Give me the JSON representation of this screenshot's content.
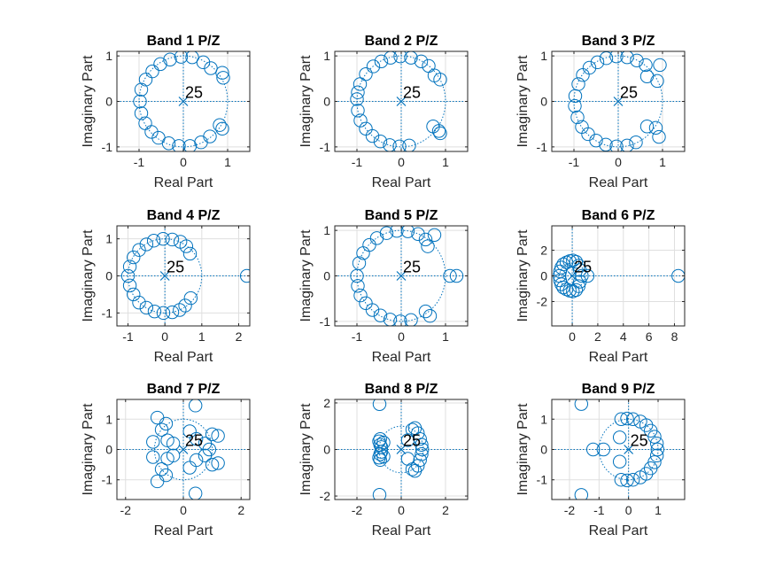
{
  "chart_data": [
    {
      "type": "scatter",
      "title": "Band 1 P/Z",
      "xlabel": "Real Part",
      "ylabel": "Imaginary Part",
      "xlim": [
        -1.5,
        1.5
      ],
      "ylim": [
        -1.1,
        1.1
      ],
      "xticks": [
        -1,
        0,
        1
      ],
      "yticks": [
        -1,
        0,
        1
      ],
      "pole_marker": [
        0,
        0
      ],
      "pole_count_label": "25",
      "grid": true,
      "zeros": [
        [
          -0.95,
          0.26
        ],
        [
          -0.98,
          0.0
        ],
        [
          -0.95,
          -0.26
        ],
        [
          -0.86,
          -0.48
        ],
        [
          -0.72,
          -0.67
        ],
        [
          -0.56,
          -0.8
        ],
        [
          -0.33,
          -0.92
        ],
        [
          -0.1,
          -0.98
        ],
        [
          0.15,
          -0.98
        ],
        [
          0.4,
          -0.9
        ],
        [
          0.6,
          -0.77
        ],
        [
          0.82,
          -0.52
        ],
        [
          0.88,
          -0.6
        ],
        [
          0.9,
          0.52
        ],
        [
          0.88,
          0.63
        ],
        [
          0.62,
          0.73
        ],
        [
          0.45,
          0.86
        ],
        [
          0.2,
          0.97
        ],
        [
          -0.05,
          0.98
        ],
        [
          -0.3,
          0.92
        ],
        [
          -0.52,
          0.82
        ],
        [
          -0.7,
          0.66
        ],
        [
          -0.85,
          0.48
        ]
      ]
    },
    {
      "type": "scatter",
      "title": "Band 2 P/Z",
      "xlabel": "Real Part",
      "ylabel": "Imaginary Part",
      "xlim": [
        -1.5,
        1.5
      ],
      "ylim": [
        -1.1,
        1.1
      ],
      "xticks": [
        -1,
        0,
        1
      ],
      "yticks": [
        -1,
        0,
        1
      ],
      "pole_marker": [
        0,
        0
      ],
      "pole_count_label": "25",
      "grid": true,
      "zeros": [
        [
          -1.0,
          0.05
        ],
        [
          -0.98,
          -0.2
        ],
        [
          -0.92,
          -0.42
        ],
        [
          -0.8,
          -0.6
        ],
        [
          -0.65,
          -0.76
        ],
        [
          -0.47,
          -0.88
        ],
        [
          -0.26,
          -0.96
        ],
        [
          -0.04,
          -0.99
        ],
        [
          0.18,
          -0.97
        ],
        [
          0.72,
          -0.55
        ],
        [
          0.85,
          -0.65
        ],
        [
          0.88,
          -0.7
        ],
        [
          0.75,
          0.57
        ],
        [
          0.88,
          0.48
        ],
        [
          0.62,
          0.78
        ],
        [
          0.45,
          0.88
        ],
        [
          0.22,
          0.96
        ],
        [
          -0.02,
          0.99
        ],
        [
          -0.24,
          0.96
        ],
        [
          -0.45,
          0.88
        ],
        [
          -0.63,
          0.77
        ],
        [
          -0.8,
          0.6
        ],
        [
          -0.93,
          0.38
        ],
        [
          -0.98,
          0.2
        ]
      ]
    },
    {
      "type": "scatter",
      "title": "Band 3 P/Z",
      "xlabel": "Real Part",
      "ylabel": "Imaginary Part",
      "xlim": [
        -1.5,
        1.5
      ],
      "ylim": [
        -1.1,
        1.1
      ],
      "xticks": [
        -1,
        0,
        1
      ],
      "yticks": [
        -1,
        0,
        1
      ],
      "pole_marker": [
        0,
        0
      ],
      "pole_count_label": "25",
      "grid": true,
      "zeros": [
        [
          -0.97,
          0.12
        ],
        [
          -0.98,
          -0.1
        ],
        [
          -0.92,
          -0.35
        ],
        [
          -0.82,
          -0.56
        ],
        [
          -0.68,
          -0.72
        ],
        [
          -0.5,
          -0.86
        ],
        [
          -0.28,
          -0.95
        ],
        [
          -0.04,
          -0.99
        ],
        [
          0.2,
          -0.97
        ],
        [
          0.4,
          -0.9
        ],
        [
          0.65,
          -0.55
        ],
        [
          0.85,
          -0.58
        ],
        [
          0.92,
          -0.78
        ],
        [
          0.65,
          0.55
        ],
        [
          0.88,
          0.45
        ],
        [
          0.94,
          0.8
        ],
        [
          0.62,
          0.8
        ],
        [
          0.42,
          0.9
        ],
        [
          0.2,
          0.97
        ],
        [
          -0.04,
          0.99
        ],
        [
          -0.27,
          0.95
        ],
        [
          -0.47,
          0.86
        ],
        [
          -0.65,
          0.74
        ],
        [
          -0.8,
          0.58
        ],
        [
          -0.9,
          0.38
        ]
      ]
    },
    {
      "type": "scatter",
      "title": "Band 4 P/Z",
      "xlabel": "Real Part",
      "ylabel": "Imaginary Part",
      "xlim": [
        -1.3,
        2.3
      ],
      "ylim": [
        -1.35,
        1.35
      ],
      "xticks": [
        -1,
        0,
        1,
        2
      ],
      "yticks": [
        -1,
        0,
        1
      ],
      "pole_marker": [
        0,
        0
      ],
      "pole_count_label": "25",
      "grid": true,
      "zeros": [
        [
          2.22,
          0.0
        ],
        [
          -0.95,
          0.25
        ],
        [
          -1.0,
          0.0
        ],
        [
          -0.95,
          -0.26
        ],
        [
          -0.85,
          -0.5
        ],
        [
          -0.7,
          -0.72
        ],
        [
          -0.5,
          -0.86
        ],
        [
          -0.28,
          -0.96
        ],
        [
          -0.04,
          -1.0
        ],
        [
          0.2,
          -0.98
        ],
        [
          0.4,
          -0.92
        ],
        [
          0.55,
          -0.8
        ],
        [
          0.7,
          -0.6
        ],
        [
          0.68,
          0.6
        ],
        [
          0.58,
          0.8
        ],
        [
          0.42,
          0.92
        ],
        [
          0.2,
          0.98
        ],
        [
          -0.05,
          1.0
        ],
        [
          -0.3,
          0.95
        ],
        [
          -0.5,
          0.85
        ],
        [
          -0.7,
          0.7
        ],
        [
          -0.85,
          0.5
        ]
      ]
    },
    {
      "type": "scatter",
      "title": "Band 5 P/Z",
      "xlabel": "Real Part",
      "ylabel": "Imaginary Part",
      "xlim": [
        -1.5,
        1.5
      ],
      "ylim": [
        -1.1,
        1.1
      ],
      "xticks": [
        -1,
        0,
        1
      ],
      "yticks": [
        -1,
        0,
        1
      ],
      "pole_marker": [
        0,
        0
      ],
      "pole_count_label": "25",
      "grid": true,
      "zeros": [
        [
          1.1,
          0.0
        ],
        [
          1.25,
          0.0
        ],
        [
          -1.0,
          0.0
        ],
        [
          -0.98,
          -0.22
        ],
        [
          -0.92,
          -0.43
        ],
        [
          -0.8,
          -0.6
        ],
        [
          -0.65,
          -0.75
        ],
        [
          -0.47,
          -0.87
        ],
        [
          -0.25,
          -0.96
        ],
        [
          -0.02,
          -1.0
        ],
        [
          0.22,
          -0.97
        ],
        [
          0.55,
          -0.78
        ],
        [
          0.65,
          -0.88
        ],
        [
          0.75,
          0.9
        ],
        [
          0.55,
          0.8
        ],
        [
          0.6,
          0.65
        ],
        [
          0.38,
          0.92
        ],
        [
          0.15,
          0.98
        ],
        [
          -0.1,
          0.99
        ],
        [
          -0.33,
          0.94
        ],
        [
          -0.55,
          0.83
        ],
        [
          -0.72,
          0.68
        ],
        [
          -0.86,
          0.5
        ],
        [
          -0.95,
          0.28
        ]
      ]
    },
    {
      "type": "scatter",
      "title": "Band 6 P/Z",
      "xlabel": "Real Part",
      "ylabel": "Imaginary Part",
      "xlim": [
        -1.6,
        8.8
      ],
      "ylim": [
        -3.9,
        3.9
      ],
      "xticks": [
        0,
        2,
        4,
        6,
        8
      ],
      "yticks": [
        -2,
        0,
        2
      ],
      "pole_marker": [
        0,
        0
      ],
      "pole_count_label": "25",
      "grid": true,
      "zeros": [
        [
          8.3,
          0.0
        ],
        [
          -1.0,
          0.0
        ],
        [
          -0.95,
          0.35
        ],
        [
          -0.95,
          -0.35
        ],
        [
          -0.85,
          0.65
        ],
        [
          -0.85,
          -0.65
        ],
        [
          -0.7,
          0.9
        ],
        [
          -0.7,
          -0.9
        ],
        [
          -0.45,
          1.05
        ],
        [
          -0.45,
          -1.05
        ],
        [
          -0.2,
          1.15
        ],
        [
          -0.2,
          -1.15
        ],
        [
          0.05,
          1.2
        ],
        [
          0.05,
          -1.2
        ],
        [
          0.3,
          1.1
        ],
        [
          0.3,
          -1.1
        ],
        [
          0.5,
          0.8
        ],
        [
          0.5,
          -0.8
        ],
        [
          0.6,
          0.45
        ],
        [
          0.6,
          -0.45
        ],
        [
          0.75,
          0.0
        ],
        [
          1.2,
          0.0
        ]
      ]
    },
    {
      "type": "scatter",
      "title": "Band 7 P/Z",
      "xlabel": "Real Part",
      "ylabel": "Imaginary Part",
      "xlim": [
        -2.3,
        2.3
      ],
      "ylim": [
        -1.65,
        1.65
      ],
      "xticks": [
        -2,
        0,
        2
      ],
      "yticks": [
        -1,
        0,
        1
      ],
      "pole_marker": [
        0,
        0
      ],
      "pole_count_label": "25",
      "grid": true,
      "zeros": [
        [
          0.42,
          1.45
        ],
        [
          0.42,
          -1.45
        ],
        [
          -0.9,
          1.05
        ],
        [
          -0.9,
          -1.05
        ],
        [
          -0.75,
          0.65
        ],
        [
          -0.75,
          -0.65
        ],
        [
          -0.6,
          0.85
        ],
        [
          -0.6,
          -0.85
        ],
        [
          -0.55,
          0.3
        ],
        [
          -0.55,
          -0.3
        ],
        [
          -0.35,
          0.2
        ],
        [
          -0.35,
          -0.2
        ],
        [
          -1.05,
          0.25
        ],
        [
          -1.05,
          -0.25
        ],
        [
          0.22,
          0.6
        ],
        [
          0.22,
          -0.6
        ],
        [
          0.45,
          0.35
        ],
        [
          0.45,
          -0.35
        ],
        [
          0.75,
          0.2
        ],
        [
          0.75,
          -0.2
        ],
        [
          1.0,
          0.5
        ],
        [
          1.0,
          -0.5
        ],
        [
          1.2,
          0.45
        ],
        [
          1.2,
          -0.45
        ],
        [
          0.9,
          0.0
        ]
      ]
    },
    {
      "type": "scatter",
      "title": "Band 8 P/Z",
      "xlabel": "Real Part",
      "ylabel": "Imaginary Part",
      "xlim": [
        -3.0,
        3.0
      ],
      "ylim": [
        -2.15,
        2.15
      ],
      "xticks": [
        -2,
        0,
        2
      ],
      "yticks": [
        -2,
        0,
        2
      ],
      "pole_marker": [
        0,
        0
      ],
      "pole_count_label": "25",
      "grid": true,
      "zeros": [
        [
          -0.98,
          1.95
        ],
        [
          -0.98,
          -1.95
        ],
        [
          -1.0,
          0.35
        ],
        [
          -1.0,
          -0.35
        ],
        [
          -0.9,
          0.1
        ],
        [
          -0.9,
          -0.1
        ],
        [
          -0.95,
          0.2
        ],
        [
          -0.95,
          -0.2
        ],
        [
          -0.8,
          0.3
        ],
        [
          -0.8,
          -0.3
        ],
        [
          -0.95,
          0.45
        ],
        [
          -0.95,
          -0.45
        ],
        [
          0.3,
          0.4
        ],
        [
          0.3,
          -0.4
        ],
        [
          0.5,
          0.85
        ],
        [
          0.5,
          -0.85
        ],
        [
          0.62,
          0.92
        ],
        [
          0.62,
          -0.92
        ],
        [
          0.75,
          0.7
        ],
        [
          0.75,
          -0.7
        ],
        [
          0.85,
          0.45
        ],
        [
          0.85,
          -0.45
        ],
        [
          0.92,
          0.2
        ],
        [
          0.92,
          -0.2
        ],
        [
          0.95,
          0.0
        ]
      ]
    },
    {
      "type": "scatter",
      "title": "Band 9 P/Z",
      "xlabel": "Real Part",
      "ylabel": "Imaginary Part",
      "xlim": [
        -2.6,
        1.9
      ],
      "ylim": [
        -1.65,
        1.65
      ],
      "xticks": [
        -2,
        -1,
        0,
        1
      ],
      "yticks": [
        -1,
        0,
        1
      ],
      "pole_marker": [
        0,
        0
      ],
      "pole_count_label": "25",
      "grid": true,
      "zeros": [
        [
          -1.6,
          1.5
        ],
        [
          -1.6,
          -1.5
        ],
        [
          -1.2,
          0.0
        ],
        [
          -0.85,
          0.0
        ],
        [
          -0.3,
          0.4
        ],
        [
          -0.3,
          -0.4
        ],
        [
          -0.25,
          1.0
        ],
        [
          -0.25,
          -1.0
        ],
        [
          -0.05,
          1.02
        ],
        [
          -0.05,
          -1.02
        ],
        [
          0.15,
          1.0
        ],
        [
          0.15,
          -1.0
        ],
        [
          0.4,
          0.92
        ],
        [
          0.4,
          -0.92
        ],
        [
          0.6,
          0.8
        ],
        [
          0.6,
          -0.8
        ],
        [
          0.75,
          0.62
        ],
        [
          0.75,
          -0.62
        ],
        [
          0.88,
          0.42
        ],
        [
          0.88,
          -0.42
        ],
        [
          0.96,
          0.2
        ],
        [
          0.96,
          -0.2
        ],
        [
          0.98,
          0.0
        ]
      ]
    }
  ]
}
